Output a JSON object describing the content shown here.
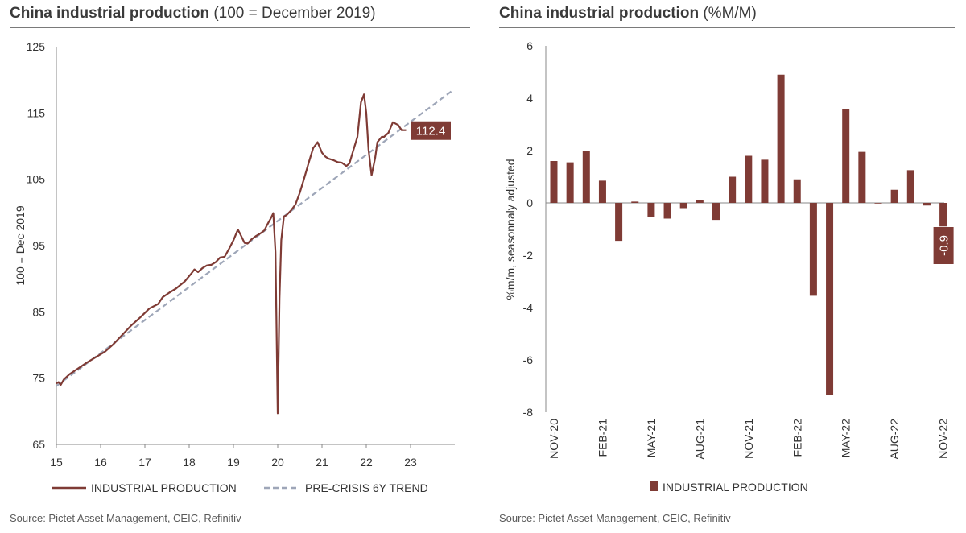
{
  "colors": {
    "series": "#7f3b35",
    "trend": "#9ea6b8",
    "axis": "#888888",
    "text": "#333333"
  },
  "chart_data": [
    {
      "type": "line",
      "title": "China industrial production",
      "subtitle": "(100 = December 2019)",
      "xlabel": "",
      "ylabel": "100 = Dec 2019",
      "xlim": [
        15,
        24
      ],
      "ylim": [
        65,
        125
      ],
      "yticks": [
        "65",
        "75",
        "85",
        "95",
        "105",
        "115",
        "125"
      ],
      "xticks": [
        "15",
        "16",
        "17",
        "18",
        "19",
        "20",
        "21",
        "22",
        "23"
      ],
      "legend": [
        "INDUSTRIAL PRODUCTION",
        "PRE-CRISIS 6Y TREND"
      ],
      "annotation": "112.4",
      "source": "Source: Pictet Asset Management, CEIC, Refinitiv",
      "series": [
        {
          "name": "INDUSTRIAL PRODUCTION",
          "x": [
            15.0,
            15.05,
            15.1,
            15.17,
            15.3,
            15.5,
            15.7,
            15.9,
            16.1,
            16.3,
            16.5,
            16.7,
            16.9,
            17.1,
            17.3,
            17.4,
            17.55,
            17.7,
            17.9,
            18.05,
            18.12,
            18.2,
            18.3,
            18.4,
            18.5,
            18.6,
            18.7,
            18.8,
            18.9,
            19.0,
            19.1,
            19.15,
            19.25,
            19.32,
            19.4,
            19.5,
            19.6,
            19.7,
            19.75,
            19.85,
            19.9,
            19.95,
            20.0,
            20.04,
            20.08,
            20.14,
            20.2,
            20.3,
            20.4,
            20.5,
            20.6,
            20.7,
            20.8,
            20.9,
            21.0,
            21.08,
            21.15,
            21.25,
            21.35,
            21.45,
            21.55,
            21.62,
            21.7,
            21.8,
            21.88,
            21.95,
            22.0,
            22.05,
            22.12,
            22.2,
            22.25,
            22.35,
            22.4,
            22.5,
            22.6,
            22.72,
            22.8,
            22.9
          ],
          "values": [
            74.2,
            74.4,
            74.0,
            74.8,
            75.6,
            76.5,
            77.4,
            78.2,
            79.0,
            80.2,
            81.6,
            83.0,
            84.2,
            85.5,
            86.2,
            87.2,
            87.9,
            88.5,
            89.6,
            90.8,
            91.4,
            91.0,
            91.6,
            92.0,
            92.1,
            92.5,
            93.2,
            93.3,
            94.5,
            95.8,
            97.4,
            96.8,
            95.4,
            95.3,
            95.9,
            96.4,
            96.8,
            97.3,
            98.0,
            99.2,
            99.9,
            94.0,
            69.7,
            87.0,
            95.8,
            99.4,
            99.6,
            100.3,
            101.2,
            103.0,
            105.2,
            107.5,
            109.7,
            110.6,
            109.0,
            108.4,
            108.1,
            107.9,
            107.6,
            107.5,
            107.0,
            107.4,
            109.2,
            111.4,
            116.6,
            117.8,
            115.0,
            109.5,
            105.6,
            108.2,
            110.6,
            111.4,
            111.4,
            112.0,
            113.6,
            113.2,
            112.4,
            112.4
          ]
        },
        {
          "name": "PRE-CRISIS 6Y TREND",
          "x": [
            15.0,
            23.95
          ],
          "values": [
            73.8,
            118.4
          ]
        }
      ]
    },
    {
      "type": "bar",
      "title": "China industrial production",
      "subtitle": "(%M/M)",
      "xlabel": "",
      "ylabel": "%m/m, seasonnaly adjusted",
      "ylim": [
        -8,
        6
      ],
      "yticks": [
        "-8",
        "-6",
        "-4",
        "-2",
        "0",
        "2",
        "4",
        "6"
      ],
      "categories": [
        "NOV-20",
        "DEC-20",
        "JAN-21",
        "FEB-21",
        "MAR-21",
        "APR-21",
        "MAY-21",
        "JUN-21",
        "JUL-21",
        "AUG-21",
        "SEP-21",
        "OCT-21",
        "NOV-21",
        "DEC-21",
        "JAN-22",
        "FEB-22",
        "MAR-22",
        "APR-22",
        "MAY-22",
        "JUN-22",
        "JUL-22",
        "AUG-22",
        "SEP-22",
        "OCT-22",
        "NOV-22"
      ],
      "xticks": [
        "NOV-20",
        "FEB-21",
        "MAY-21",
        "AUG-21",
        "NOV-21",
        "FEB-22",
        "MAY-22",
        "AUG-22",
        "NOV-22"
      ],
      "values": [
        1.6,
        1.55,
        2.0,
        0.85,
        -1.45,
        0.05,
        -0.55,
        -0.6,
        -0.2,
        0.1,
        -0.65,
        1.0,
        1.8,
        1.65,
        4.9,
        0.9,
        -3.55,
        -7.35,
        3.6,
        1.95,
        0.0,
        0.5,
        1.25,
        -0.1,
        -0.9
      ],
      "legend": [
        "INDUSTRIAL PRODUCTION"
      ],
      "annotation": "-0.9",
      "source": "Source: Pictet Asset Management, CEIC, Refinitiv"
    }
  ]
}
